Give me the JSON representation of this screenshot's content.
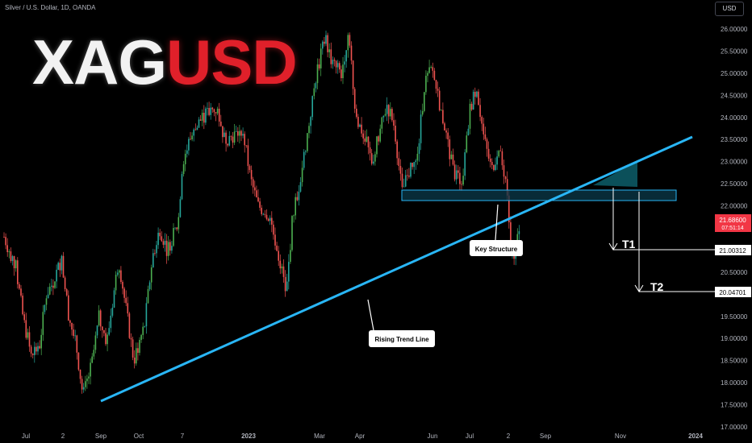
{
  "header": {
    "symbol_text": "Silver / U.S. Dollar, 1D, OANDA",
    "currency_button": "USD"
  },
  "logo": {
    "white": "XAG",
    "red": "USD"
  },
  "price_tag": {
    "price": "21.68600",
    "countdown": "07:51:14"
  },
  "annotations": {
    "key_structure": "Key Structure",
    "rising_trend_line": "Rising Trend Line",
    "t1": {
      "label": "T1",
      "price": "21.00312"
    },
    "t2": {
      "label": "T2",
      "price": "20.04701"
    }
  },
  "colors": {
    "up": "#26a69a",
    "up_bright": "#4caf50",
    "down": "#ef5350",
    "trend": "#29b6f6",
    "zone": "#1e6b8a",
    "price_tag": "#f23645"
  },
  "chart_data": {
    "type": "candlestick",
    "title": "Silver / U.S. Dollar, 1D, OANDA",
    "ylim": [
      17.0,
      26.4
    ],
    "y_ticks": [
      "26.00000",
      "25.50000",
      "25.00000",
      "24.50000",
      "24.00000",
      "23.50000",
      "23.00000",
      "22.50000",
      "22.00000",
      "21.50000",
      "21.00000",
      "20.50000",
      "20.00000",
      "19.50000",
      "19.00000",
      "18.50000",
      "18.00000",
      "17.50000",
      "17.00000"
    ],
    "x_ticks": [
      "Jul",
      "2",
      "Sep",
      "Oct",
      "7",
      "2023",
      "Mar",
      "Apr",
      "Jun",
      "Jul",
      "2",
      "Sep",
      "Nov",
      "2024"
    ],
    "close_path": [
      {
        "d": "2022-06-20",
        "y": 21.3
      },
      {
        "d": "2022-07-01",
        "y": 20.6
      },
      {
        "d": "2022-07-08",
        "y": 19.4
      },
      {
        "d": "2022-07-14",
        "y": 18.8
      },
      {
        "d": "2022-07-22",
        "y": 18.7
      },
      {
        "d": "2022-07-29",
        "y": 20.0
      },
      {
        "d": "2022-08-05",
        "y": 20.3
      },
      {
        "d": "2022-08-12",
        "y": 20.8
      },
      {
        "d": "2022-08-19",
        "y": 19.5
      },
      {
        "d": "2022-08-26",
        "y": 18.8
      },
      {
        "d": "2022-09-01",
        "y": 17.7
      },
      {
        "d": "2022-09-09",
        "y": 18.4
      },
      {
        "d": "2022-09-16",
        "y": 19.5
      },
      {
        "d": "2022-09-23",
        "y": 18.9
      },
      {
        "d": "2022-10-04",
        "y": 20.8
      },
      {
        "d": "2022-10-10",
        "y": 19.8
      },
      {
        "d": "2022-10-18",
        "y": 18.5
      },
      {
        "d": "2022-10-28",
        "y": 19.3
      },
      {
        "d": "2022-11-04",
        "y": 20.8
      },
      {
        "d": "2022-11-11",
        "y": 21.5
      },
      {
        "d": "2022-11-18",
        "y": 21.0
      },
      {
        "d": "2022-11-28",
        "y": 21.6
      },
      {
        "d": "2022-12-02",
        "y": 23.0
      },
      {
        "d": "2022-12-09",
        "y": 23.5
      },
      {
        "d": "2022-12-20",
        "y": 24.0
      },
      {
        "d": "2023-01-03",
        "y": 24.2
      },
      {
        "d": "2023-01-10",
        "y": 23.5
      },
      {
        "d": "2023-01-18",
        "y": 23.6
      },
      {
        "d": "2023-01-27",
        "y": 23.7
      },
      {
        "d": "2023-02-03",
        "y": 22.6
      },
      {
        "d": "2023-02-10",
        "y": 22.0
      },
      {
        "d": "2023-02-20",
        "y": 21.8
      },
      {
        "d": "2023-02-28",
        "y": 21.0
      },
      {
        "d": "2023-03-08",
        "y": 20.0
      },
      {
        "d": "2023-03-14",
        "y": 21.8
      },
      {
        "d": "2023-03-21",
        "y": 22.6
      },
      {
        "d": "2023-03-30",
        "y": 24.0
      },
      {
        "d": "2023-04-05",
        "y": 25.0
      },
      {
        "d": "2023-04-13",
        "y": 25.8
      },
      {
        "d": "2023-04-20",
        "y": 25.2
      },
      {
        "d": "2023-04-28",
        "y": 25.0
      },
      {
        "d": "2023-05-05",
        "y": 26.0
      },
      {
        "d": "2023-05-11",
        "y": 24.0
      },
      {
        "d": "2023-05-19",
        "y": 23.6
      },
      {
        "d": "2023-05-26",
        "y": 23.0
      },
      {
        "d": "2023-06-02",
        "y": 23.6
      },
      {
        "d": "2023-06-09",
        "y": 24.3
      },
      {
        "d": "2023-06-16",
        "y": 23.8
      },
      {
        "d": "2023-06-23",
        "y": 22.3
      },
      {
        "d": "2023-06-30",
        "y": 22.8
      },
      {
        "d": "2023-07-07",
        "y": 23.0
      },
      {
        "d": "2023-07-14",
        "y": 24.8
      },
      {
        "d": "2023-07-21",
        "y": 25.1
      },
      {
        "d": "2023-07-27",
        "y": 24.4
      },
      {
        "d": "2023-08-03",
        "y": 23.6
      },
      {
        "d": "2023-08-10",
        "y": 22.7
      },
      {
        "d": "2023-08-18",
        "y": 22.6
      },
      {
        "d": "2023-08-25",
        "y": 24.2
      },
      {
        "d": "2023-08-31",
        "y": 24.7
      },
      {
        "d": "2023-09-07",
        "y": 23.5
      },
      {
        "d": "2023-09-14",
        "y": 22.8
      },
      {
        "d": "2023-09-20",
        "y": 23.3
      },
      {
        "d": "2023-09-27",
        "y": 22.6
      },
      {
        "d": "2023-10-02",
        "y": 21.0
      },
      {
        "d": "2023-10-05",
        "y": 20.8
      },
      {
        "d": "2023-10-10",
        "y": 21.7
      }
    ],
    "trend_line": {
      "from": {
        "d": "2022-09-01",
        "y": 17.6
      },
      "to": {
        "d": "2023-12-01",
        "y": 23.55
      }
    },
    "key_structure_zone": {
      "from": "2023-03-24",
      "to": "2023-12-13",
      "y_low": 22.1,
      "y_high": 22.35
    },
    "targets": [
      {
        "label": "T1",
        "y": 21.00312,
        "from_d": "2023-10-24"
      },
      {
        "label": "T2",
        "y": 20.04701,
        "from_d": "2023-11-07"
      }
    ],
    "last_price": 21.686
  }
}
